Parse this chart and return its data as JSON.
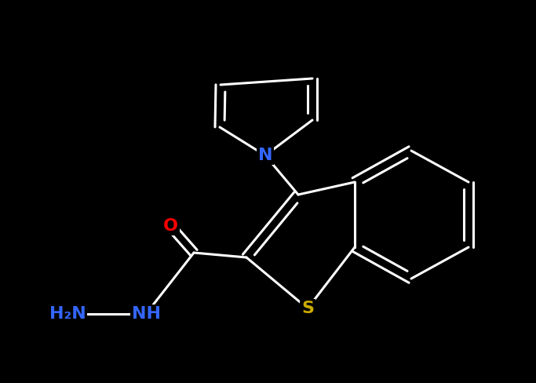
{
  "background_color": "#000000",
  "bond_color": "#ffffff",
  "N_color": "#3366ff",
  "O_color": "#ff0000",
  "S_color": "#ccaa00",
  "bond_lw": 2.2,
  "font_size": 16,
  "fig_width": 6.83,
  "fig_height": 4.88,
  "dpi": 100,
  "xlim": [
    0,
    6.83
  ],
  "ylim": [
    0,
    4.88
  ]
}
